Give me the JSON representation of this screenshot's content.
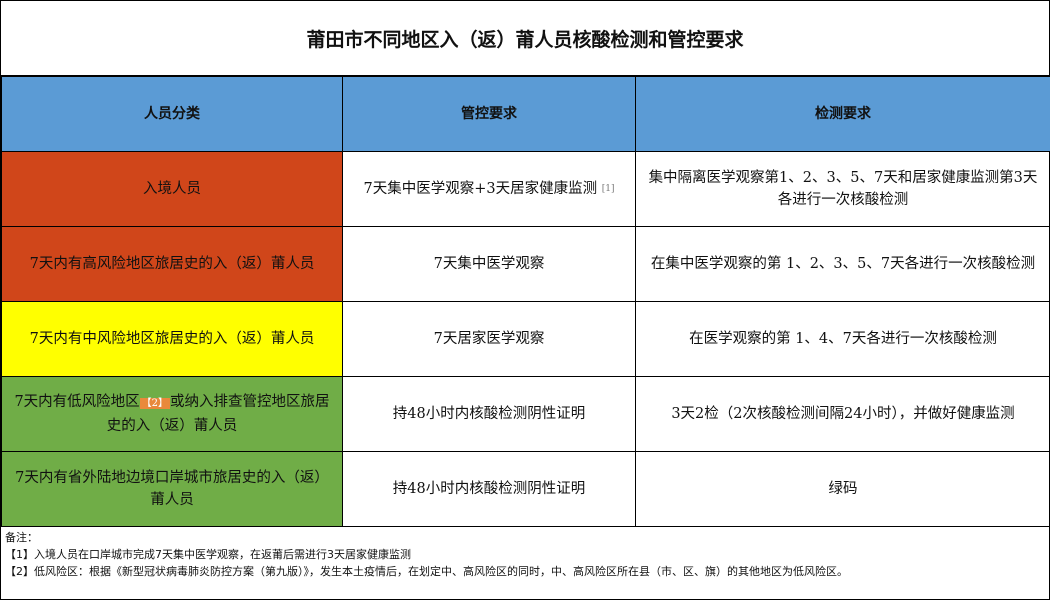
{
  "title": "莆田市不同地区入（返）莆人员核酸检测和管控要求",
  "headers": [
    "人员分类",
    "管控要求",
    "检测要求"
  ],
  "rows": [
    {
      "category": "入境人员",
      "control": "7天集中医学观察+3天居家健康监测",
      "control_ref": "[1]",
      "test": "集中隔离医学观察第1、2、3、5、7天和居家健康监测第3天各进行一次核酸检测",
      "color": "#d0461a"
    },
    {
      "category": "7天内有高风险地区旅居史的入（返）莆人员",
      "control": "7天集中医学观察",
      "test": "在集中医学观察的第 1、2、3、5、7天各进行一次核酸检测",
      "color": "#d0461a"
    },
    {
      "category": "7天内有中风险地区旅居史的入（返）莆人员",
      "control": "7天居家医学观察",
      "test": "在医学观察的第 1、4、7天各进行一次核酸检测",
      "color": "#ffff00"
    },
    {
      "category_a": "7天内有低风险地区",
      "category_ref": "【2】",
      "category_b": "或纳入排查管控地区旅居史的入（返）莆人员",
      "control": "持48小时内核酸检测阴性证明",
      "test": "3天2检（2次核酸检测间隔24小时），并做好健康监测",
      "color": "#70ad47"
    },
    {
      "category": "7天内有省外陆地边境口岸城市旅居史的入（返）莆人员",
      "control": "持48小时内核酸检测阴性证明",
      "test": "绿码",
      "color": "#70ad47"
    }
  ],
  "notes": {
    "label": "备注：",
    "items": [
      "【1】入境人员在口岸城市完成7天集中医学观察，在返莆后需进行3天居家健康监测",
      "【2】低风险区：根据《新型冠状病毒肺炎防控方案（第九版）》，发生本土疫情后，在划定中、高风险区的同时，中、高风险区所在县（市、区、旗）的其他地区为低风险区。"
    ]
  }
}
